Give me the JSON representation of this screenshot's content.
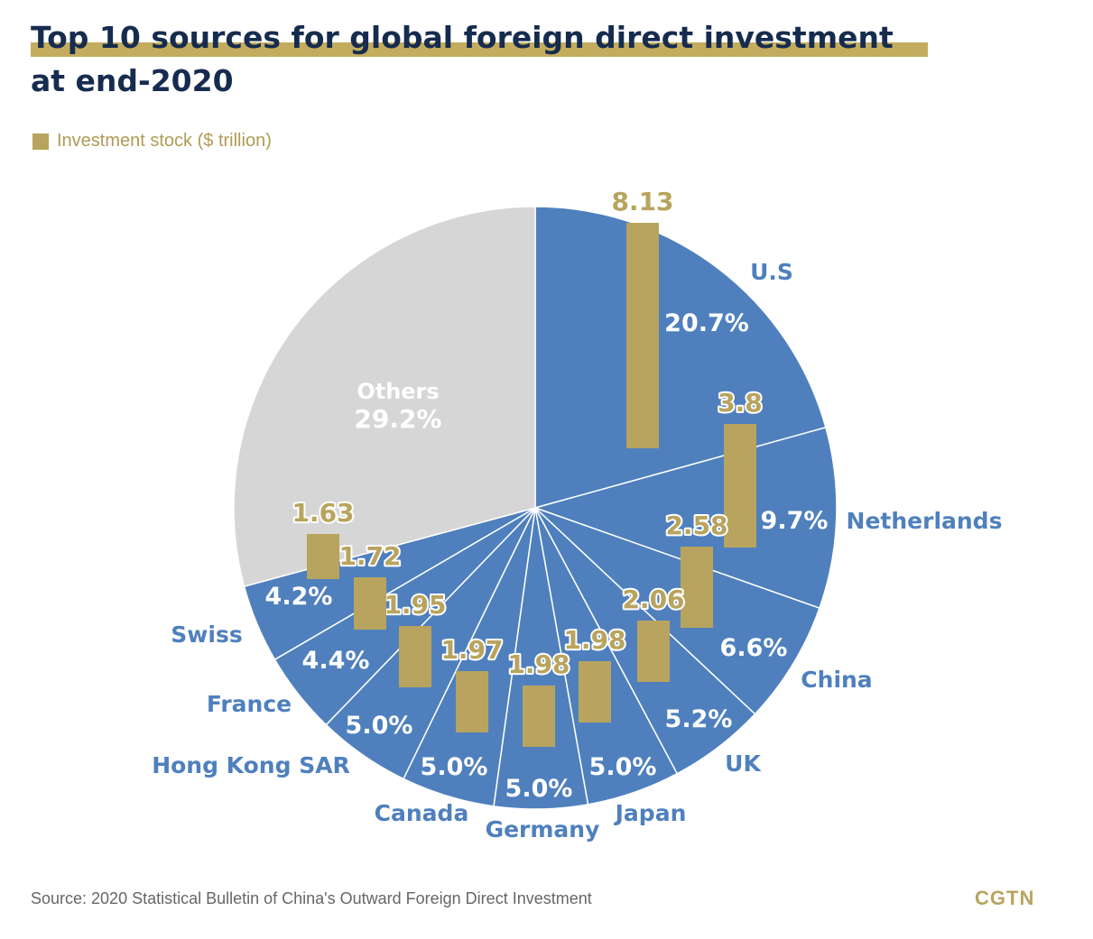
{
  "title_line1": "Top 10 sources for global foreign direct investment",
  "title_line2": "at end-2020",
  "legend_label": "Investment stock ($ trillion)",
  "source": "Source: 2020 Statistical Bulletin of China's Outward Foreign Direct Investment",
  "brand": "CGTN",
  "colors": {
    "title": "#162c4f",
    "accent_gold": "#b8a45e",
    "title_highlight": "#c4ac5e",
    "slice_blue": "#4f80bd",
    "slice_others": "#d6d6d6",
    "label_blue": "#4f80bd",
    "percent_text": "#ffffff"
  },
  "chart_data": {
    "type": "pie",
    "title": "Top 10 sources for global foreign direct investment at end-2020",
    "legend": [
      "Investment stock ($ trillion)"
    ],
    "slices": [
      {
        "name": "U.S",
        "percent": 20.7,
        "percent_label": "20.7%",
        "stock": 8.13,
        "stock_label": "8.13"
      },
      {
        "name": "Netherlands",
        "percent": 9.7,
        "percent_label": "9.7%",
        "stock": 3.8,
        "stock_label": "3.8"
      },
      {
        "name": "China",
        "percent": 6.6,
        "percent_label": "6.6%",
        "stock": 2.58,
        "stock_label": "2.58"
      },
      {
        "name": "UK",
        "percent": 5.2,
        "percent_label": "5.2%",
        "stock": 2.06,
        "stock_label": "2.06"
      },
      {
        "name": "Japan",
        "percent": 5.0,
        "percent_label": "5.0%",
        "stock": 1.98,
        "stock_label": "1.98"
      },
      {
        "name": "Germany",
        "percent": 5.0,
        "percent_label": "5.0%",
        "stock": 1.98,
        "stock_label": "1.98"
      },
      {
        "name": "Canada",
        "percent": 5.0,
        "percent_label": "5.0%",
        "stock": 1.97,
        "stock_label": "1.97"
      },
      {
        "name": "Hong Kong SAR",
        "percent": 5.0,
        "percent_label": "5.0%",
        "stock": 1.95,
        "stock_label": "1.95"
      },
      {
        "name": "France",
        "percent": 4.4,
        "percent_label": "4.4%",
        "stock": 1.72,
        "stock_label": "1.72"
      },
      {
        "name": "Swiss",
        "percent": 4.2,
        "percent_label": "4.2%",
        "stock": 1.63,
        "stock_label": "1.63"
      },
      {
        "name": "Others",
        "percent": 29.2,
        "percent_label": "29.2%"
      }
    ]
  }
}
